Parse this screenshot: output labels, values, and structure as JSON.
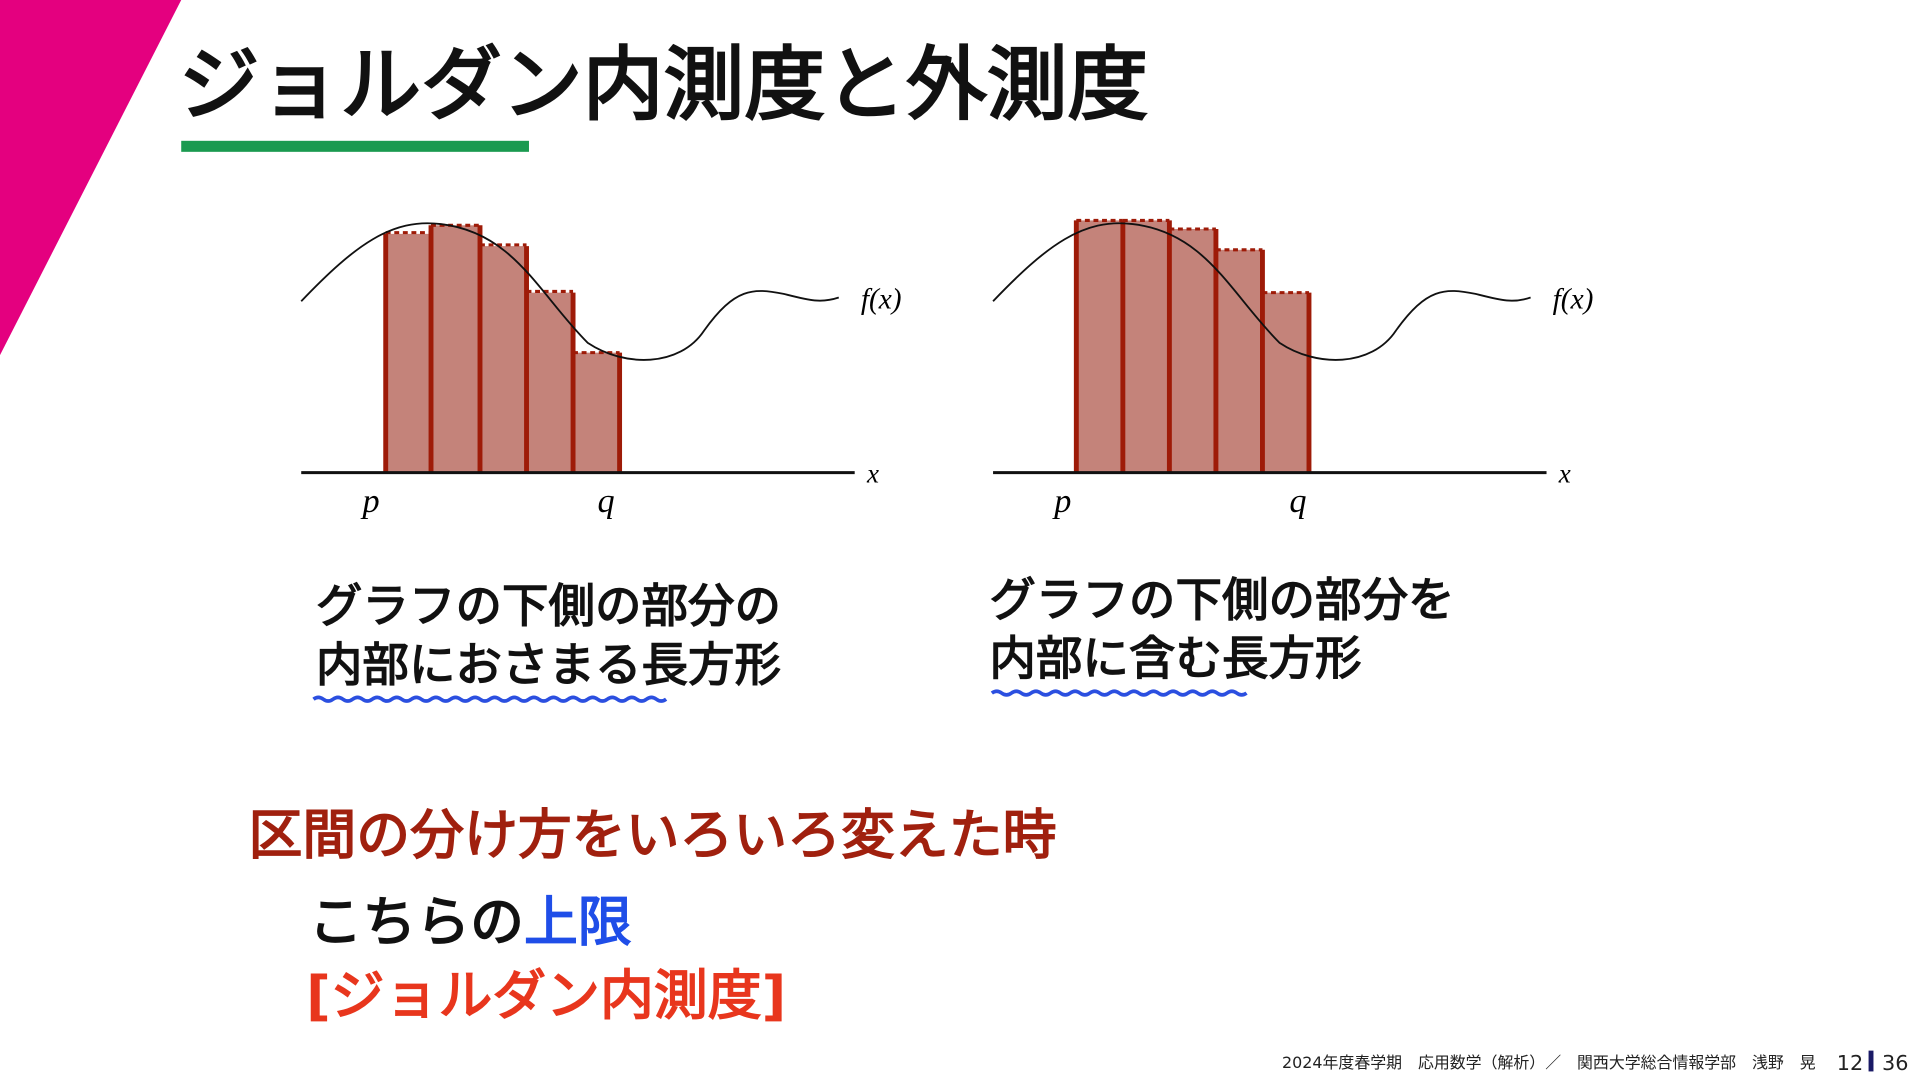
{
  "header": {
    "title": "ジョルダン内測度と外測度"
  },
  "figures": [
    {
      "function_label": "f(x)",
      "x_label": "x",
      "p_label": "p",
      "q_label": "q",
      "caption": [
        "グラフの下側の部分の",
        "内部におさまる長方形"
      ]
    },
    {
      "function_label": "f(x)",
      "x_label": "x",
      "p_label": "p",
      "q_label": "q",
      "caption": [
        "グラフの下側の部分を",
        "内部に含む長方形"
      ]
    }
  ],
  "body": {
    "heading": "区間の分け方をいろいろ変えた時",
    "line1_prefix": "こちらの",
    "line1_emphasis": "上限",
    "line2": "[ジョルダン内測度]"
  },
  "footer": {
    "course": "2024年度春学期　応用数学（解析）／　関西大学総合情報学部　浅野　晃",
    "page": "12",
    "total": "36"
  }
}
